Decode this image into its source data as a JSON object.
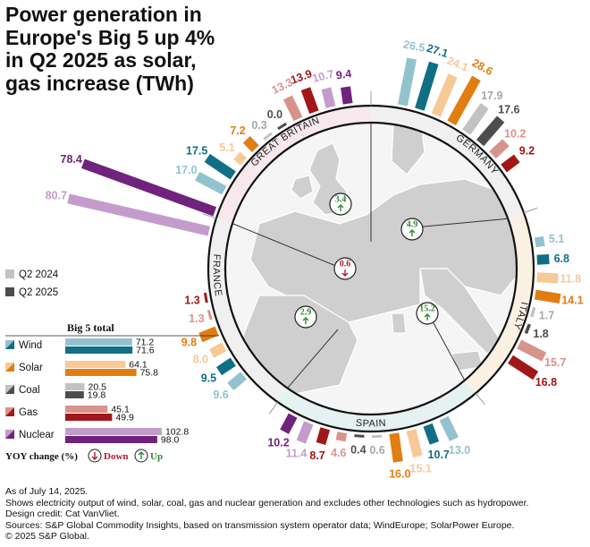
{
  "title": "Power generation in Europe's Big 5 up 4% in Q2 2025 as solar, gas increase (TWh)",
  "notes": [
    "As of July 14, 2025.",
    "Shows electricity output of wind, solar, coal, gas and nuclear generation and excludes other technologies such as hydropower.",
    "Design credit: Cat VanVliet.",
    "Sources: S&P Global Commodity Insights, based on transmission system operator data; WindEurope; SolarPower Europe.",
    "© 2025 S&P Global."
  ],
  "colors": {
    "wind_2024": "#93c2cf",
    "wind_2025": "#106f85",
    "solar_2024": "#f7c997",
    "solar_2025": "#e27d12",
    "coal_2024": "#c2c2c2",
    "coal_2025": "#4d4d4d",
    "gas_2024": "#d9938d",
    "gas_2025": "#a11717",
    "nuclear_2024": "#c49ccc",
    "nuclear_2025": "#6f237d",
    "down": "#b01d34",
    "up": "#2e8b2e"
  },
  "legend": {
    "q2_2024": "Q2 2024",
    "q2_2025": "Q2 2025"
  },
  "yoy_key": {
    "label": "YOY change (%)",
    "down": "Down",
    "up": "Up"
  },
  "chart_data": {
    "type": "bar",
    "layout": "radial",
    "title": "Power generation in Europe's Big 5 up 4% in Q2 2025 as solar, gas increase (TWh)",
    "unit": "TWh",
    "series_order": [
      "wind",
      "solar",
      "coal",
      "gas",
      "nuclear"
    ],
    "series_names": {
      "wind": "Wind",
      "solar": "Solar",
      "coal": "Coal",
      "gas": "Gas",
      "nuclear": "Nuclear"
    },
    "countries": [
      {
        "name": "GREAT BRITAIN",
        "yoy": "3.4",
        "yoy_direction": "up",
        "bars": [
          {
            "tech": "wind",
            "year": "2024",
            "value": 17.0,
            "label": "17.0"
          },
          {
            "tech": "wind",
            "year": "2025",
            "value": 17.5,
            "label": "17.5"
          },
          {
            "tech": "solar",
            "year": "2024",
            "value": 5.1,
            "label": "5.1"
          },
          {
            "tech": "solar",
            "year": "2025",
            "value": 7.2,
            "label": "7.2"
          },
          {
            "tech": "coal",
            "year": "2024",
            "value": 0.3,
            "label": "0.3"
          },
          {
            "tech": "coal",
            "year": "2025",
            "value": 0.0,
            "label": "0.0"
          },
          {
            "tech": "gas",
            "year": "2024",
            "value": 13.3,
            "label": "13.3"
          },
          {
            "tech": "gas",
            "year": "2025",
            "value": 13.9,
            "label": "13.9"
          },
          {
            "tech": "nuclear",
            "year": "2024",
            "value": 10.7,
            "label": "10.7"
          },
          {
            "tech": "nuclear",
            "year": "2025",
            "value": 9.4,
            "label": "9.4"
          }
        ]
      },
      {
        "name": "GERMANY",
        "yoy": "4.9",
        "yoy_direction": "up",
        "bars": [
          {
            "tech": "wind",
            "year": "2024",
            "value": 26.5,
            "label": "26.5"
          },
          {
            "tech": "wind",
            "year": "2025",
            "value": 27.1,
            "label": "27.1"
          },
          {
            "tech": "solar",
            "year": "2024",
            "value": 24.1,
            "label": "24.1"
          },
          {
            "tech": "solar",
            "year": "2025",
            "value": 28.6,
            "label": "28.6"
          },
          {
            "tech": "coal",
            "year": "2024",
            "value": 17.9,
            "label": "17.9"
          },
          {
            "tech": "coal",
            "year": "2025",
            "value": 17.6,
            "label": "17.6"
          },
          {
            "tech": "gas",
            "year": "2024",
            "value": 10.2,
            "label": "10.2"
          },
          {
            "tech": "gas",
            "year": "2025",
            "value": 9.2,
            "label": "9.2"
          }
        ]
      },
      {
        "name": "ITALY",
        "yoy": "15.2",
        "yoy_direction": "up",
        "bars": [
          {
            "tech": "wind",
            "year": "2024",
            "value": 5.1,
            "label": "5.1"
          },
          {
            "tech": "wind",
            "year": "2025",
            "value": 6.8,
            "label": "6.8"
          },
          {
            "tech": "solar",
            "year": "2024",
            "value": 11.8,
            "label": "11.8"
          },
          {
            "tech": "solar",
            "year": "2025",
            "value": 14.1,
            "label": "14.1"
          },
          {
            "tech": "coal",
            "year": "2024",
            "value": 1.7,
            "label": "1.7"
          },
          {
            "tech": "coal",
            "year": "2025",
            "value": 1.8,
            "label": "1.8"
          },
          {
            "tech": "gas",
            "year": "2024",
            "value": 15.7,
            "label": "15.7"
          },
          {
            "tech": "gas",
            "year": "2025",
            "value": 16.8,
            "label": "16.8"
          }
        ]
      },
      {
        "name": "SPAIN",
        "yoy": "2.9",
        "yoy_direction": "up",
        "bars": [
          {
            "tech": "wind",
            "year": "2024",
            "value": 13.0,
            "label": "13.0"
          },
          {
            "tech": "wind",
            "year": "2025",
            "value": 10.7,
            "label": "10.7"
          },
          {
            "tech": "solar",
            "year": "2024",
            "value": 15.1,
            "label": "15.1"
          },
          {
            "tech": "solar",
            "year": "2025",
            "value": 16.0,
            "label": "16.0"
          },
          {
            "tech": "coal",
            "year": "2024",
            "value": 0.6,
            "label": "0.6"
          },
          {
            "tech": "coal",
            "year": "2025",
            "value": 0.4,
            "label": "0.4"
          },
          {
            "tech": "gas",
            "year": "2024",
            "value": 4.6,
            "label": "4.6"
          },
          {
            "tech": "gas",
            "year": "2025",
            "value": 8.7,
            "label": "8.7"
          },
          {
            "tech": "nuclear",
            "year": "2024",
            "value": 11.4,
            "label": "11.4"
          },
          {
            "tech": "nuclear",
            "year": "2025",
            "value": 10.2,
            "label": "10.2"
          }
        ]
      },
      {
        "name": "FRANCE",
        "yoy": "0.6",
        "yoy_direction": "down",
        "bars": [
          {
            "tech": "wind",
            "year": "2024",
            "value": 9.6,
            "label": "9.6"
          },
          {
            "tech": "wind",
            "year": "2025",
            "value": 9.5,
            "label": "9.5"
          },
          {
            "tech": "solar",
            "year": "2024",
            "value": 8.0,
            "label": "8.0"
          },
          {
            "tech": "solar",
            "year": "2025",
            "value": 9.8,
            "label": "9.8"
          },
          {
            "tech": "gas",
            "year": "2024",
            "value": 1.3,
            "label": "1.3"
          },
          {
            "tech": "gas",
            "year": "2025",
            "value": 1.3,
            "label": "1.3"
          },
          {
            "tech": "nuclear",
            "year": "2024",
            "value": 80.7,
            "label": "80.7"
          },
          {
            "tech": "nuclear",
            "year": "2025",
            "value": 78.4,
            "label": "78.4"
          }
        ]
      }
    ],
    "big5_total": {
      "title": "Big 5 total",
      "rows": [
        {
          "tech": "wind",
          "label": "Wind",
          "v2024": 71.2,
          "v2025": 71.6,
          "t2024": "71.2",
          "t2025": "71.6"
        },
        {
          "tech": "solar",
          "label": "Solar",
          "v2024": 64.1,
          "v2025": 75.8,
          "t2024": "64.1",
          "t2025": "75.8"
        },
        {
          "tech": "coal",
          "label": "Coal",
          "v2024": 20.5,
          "v2025": 19.8,
          "t2024": "20.5",
          "t2025": "19.8"
        },
        {
          "tech": "gas",
          "label": "Gas",
          "v2024": 45.1,
          "v2025": 49.9,
          "t2024": "45.1",
          "t2025": "49.9"
        },
        {
          "tech": "nuclear",
          "label": "Nuclear",
          "v2024": 102.8,
          "v2025": 98.0,
          "t2024": "102.8",
          "t2025": "98.0"
        }
      ]
    }
  }
}
